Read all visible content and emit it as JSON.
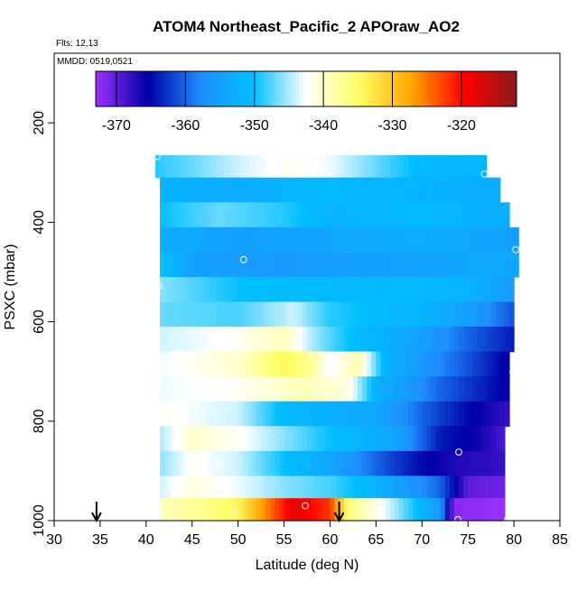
{
  "chart_data": {
    "type": "heatmap",
    "title": "ATOM4 Northeast_Pacific_2 APOraw_AO2",
    "note_flights": "Flts: 12,13",
    "note_dates": "MMDD: 0519,0521",
    "xlabel": "Latitude (deg N)",
    "ylabel": "PSXC (mbar)",
    "xlim": [
      30,
      85
    ],
    "ylim": [
      1000,
      60
    ],
    "y_reversed": true,
    "xticks": [
      "30",
      "35",
      "40",
      "45",
      "50",
      "55",
      "60",
      "65",
      "70",
      "75",
      "80",
      "85"
    ],
    "yticks": [
      "200",
      "400",
      "600",
      "800",
      "1000"
    ],
    "colorbar": {
      "range": [
        -373,
        -312
      ],
      "ticks": [
        "-370",
        "-360",
        "-350",
        "-340",
        "-330",
        "-320"
      ],
      "tick_values": [
        -370,
        -360,
        -350,
        -340,
        -330,
        -320
      ],
      "colors": [
        "#9b30ff",
        "#0000a8",
        "#1e8fff",
        "#00bfff",
        "#ffffff",
        "#ffff66",
        "#ffa500",
        "#ff0000",
        "#8b1a1a"
      ]
    },
    "layers": [
      {
        "p_top": 265,
        "p_bot": 310,
        "lat_min": 41,
        "lat_max": 77,
        "knots": [
          [
            41,
            -349
          ],
          [
            45,
            -347
          ],
          [
            50,
            -344
          ],
          [
            55,
            -342
          ],
          [
            60,
            -343
          ],
          [
            65,
            -347
          ],
          [
            70,
            -351
          ],
          [
            77,
            -352
          ]
        ]
      },
      {
        "p_top": 310,
        "p_bot": 360,
        "lat_min": 41.5,
        "lat_max": 78.5,
        "knots": [
          [
            41.5,
            -352
          ],
          [
            50,
            -353
          ],
          [
            60,
            -351
          ],
          [
            70,
            -352
          ],
          [
            78.5,
            -353
          ]
        ]
      },
      {
        "p_top": 360,
        "p_bot": 410,
        "lat_min": 41.5,
        "lat_max": 79.5,
        "knots": [
          [
            41.5,
            -350
          ],
          [
            48,
            -347
          ],
          [
            55,
            -349
          ],
          [
            60,
            -352
          ],
          [
            70,
            -351
          ],
          [
            79.5,
            -353
          ]
        ]
      },
      {
        "p_top": 410,
        "p_bot": 460,
        "lat_min": 41.5,
        "lat_max": 80.5,
        "knots": [
          [
            41.5,
            -353
          ],
          [
            50,
            -355
          ],
          [
            60,
            -354
          ],
          [
            70,
            -353
          ],
          [
            80.5,
            -355
          ]
        ]
      },
      {
        "p_top": 460,
        "p_bot": 510,
        "lat_min": 41.5,
        "lat_max": 80.5,
        "knots": [
          [
            41.5,
            -350
          ],
          [
            45,
            -355
          ],
          [
            55,
            -356
          ],
          [
            65,
            -355
          ],
          [
            75,
            -354
          ],
          [
            80.5,
            -354
          ]
        ]
      },
      {
        "p_top": 510,
        "p_bot": 560,
        "lat_min": 41.5,
        "lat_max": 80,
        "knots": [
          [
            41.5,
            -346
          ],
          [
            50,
            -350
          ],
          [
            60,
            -351
          ],
          [
            70,
            -351
          ],
          [
            75,
            -352
          ],
          [
            80,
            -356
          ]
        ]
      },
      {
        "p_top": 560,
        "p_bot": 610,
        "lat_min": 41.5,
        "lat_max": 80,
        "knots": [
          [
            41.5,
            -347
          ],
          [
            50,
            -348
          ],
          [
            56,
            -344
          ],
          [
            60,
            -349
          ],
          [
            70,
            -352
          ],
          [
            75,
            -355
          ],
          [
            80,
            -361
          ]
        ]
      },
      {
        "p_top": 610,
        "p_bot": 660,
        "lat_min": 41.5,
        "lat_max": 80,
        "knots": [
          [
            41.5,
            -344
          ],
          [
            50,
            -342
          ],
          [
            55,
            -339
          ],
          [
            58,
            -345
          ],
          [
            62,
            -350
          ],
          [
            70,
            -355
          ],
          [
            75,
            -360
          ],
          [
            80,
            -364
          ]
        ]
      },
      {
        "p_top": 660,
        "p_bot": 710,
        "lat_min": 41.5,
        "lat_max": 79.5,
        "knots": [
          [
            41.5,
            -343
          ],
          [
            50,
            -340
          ],
          [
            55,
            -334
          ],
          [
            58,
            -337
          ],
          [
            60,
            -343
          ],
          [
            63,
            -338
          ],
          [
            66,
            -352
          ],
          [
            72,
            -358
          ],
          [
            76,
            -362
          ],
          [
            79.5,
            -366
          ]
        ]
      },
      {
        "p_top": 710,
        "p_bot": 760,
        "lat_min": 41.5,
        "lat_max": 79.5,
        "knots": [
          [
            41.5,
            -343
          ],
          [
            50,
            -342
          ],
          [
            57,
            -339
          ],
          [
            62,
            -341
          ],
          [
            65,
            -352
          ],
          [
            72,
            -360
          ],
          [
            79.5,
            -366
          ]
        ]
      },
      {
        "p_top": 760,
        "p_bot": 810,
        "lat_min": 41.5,
        "lat_max": 79.5,
        "knots": [
          [
            41.5,
            -342
          ],
          [
            50,
            -344
          ],
          [
            55,
            -351
          ],
          [
            65,
            -354
          ],
          [
            70,
            -360
          ],
          [
            75,
            -365
          ],
          [
            79.5,
            -368
          ]
        ]
      },
      {
        "p_top": 810,
        "p_bot": 860,
        "lat_min": 41.5,
        "lat_max": 79,
        "knots": [
          [
            41.5,
            -345
          ],
          [
            45,
            -340
          ],
          [
            50,
            -342
          ],
          [
            55,
            -346
          ],
          [
            60,
            -350
          ],
          [
            67,
            -354
          ],
          [
            72,
            -364
          ],
          [
            76,
            -366
          ],
          [
            79,
            -369
          ]
        ]
      },
      {
        "p_top": 860,
        "p_bot": 910,
        "lat_min": 41.5,
        "lat_max": 79,
        "knots": [
          [
            41.5,
            -346
          ],
          [
            45,
            -342
          ],
          [
            50,
            -344
          ],
          [
            55,
            -350
          ],
          [
            60,
            -354
          ],
          [
            65,
            -360
          ],
          [
            70,
            -365
          ],
          [
            74,
            -367
          ],
          [
            79,
            -368
          ]
        ]
      },
      {
        "p_top": 910,
        "p_bot": 955,
        "lat_min": 41.5,
        "lat_max": 79,
        "knots": [
          [
            41.5,
            -344
          ],
          [
            45,
            -341
          ],
          [
            50,
            -343
          ],
          [
            55,
            -346
          ],
          [
            60,
            -348
          ],
          [
            65,
            -352
          ],
          [
            72,
            -360
          ],
          [
            75,
            -370
          ],
          [
            79,
            -371
          ]
        ]
      },
      {
        "p_top": 955,
        "p_bot": 1000,
        "lat_min": 41.5,
        "lat_max": 79,
        "knots": [
          [
            41.5,
            -339
          ],
          [
            46,
            -337
          ],
          [
            50,
            -334
          ],
          [
            53,
            -326
          ],
          [
            56,
            -318
          ],
          [
            60,
            -322
          ],
          [
            62,
            -336
          ],
          [
            67,
            -345
          ],
          [
            72,
            -356
          ],
          [
            73.5,
            -372
          ],
          [
            79,
            -373
          ]
        ]
      }
    ],
    "markers": [
      {
        "lat": 41.2,
        "p": 268
      },
      {
        "lat": 76.8,
        "p": 303
      },
      {
        "lat": 80.2,
        "p": 455
      },
      {
        "lat": 50.6,
        "p": 475
      },
      {
        "lat": 41.4,
        "p": 528
      },
      {
        "lat": 57.8,
        "p": 668
      },
      {
        "lat": 62.1,
        "p": 678
      },
      {
        "lat": 79.9,
        "p": 702
      },
      {
        "lat": 43.4,
        "p": 732
      },
      {
        "lat": 74.0,
        "p": 862
      },
      {
        "lat": 48.2,
        "p": 882
      },
      {
        "lat": 57.3,
        "p": 970
      },
      {
        "lat": 49.6,
        "p": 982
      },
      {
        "lat": 41.5,
        "p": 998
      },
      {
        "lat": 73.9,
        "p": 998
      },
      {
        "lat": 79.3,
        "p": 998
      }
    ],
    "arrows": [
      {
        "lat": 34.6
      },
      {
        "lat": 61.0
      }
    ]
  }
}
